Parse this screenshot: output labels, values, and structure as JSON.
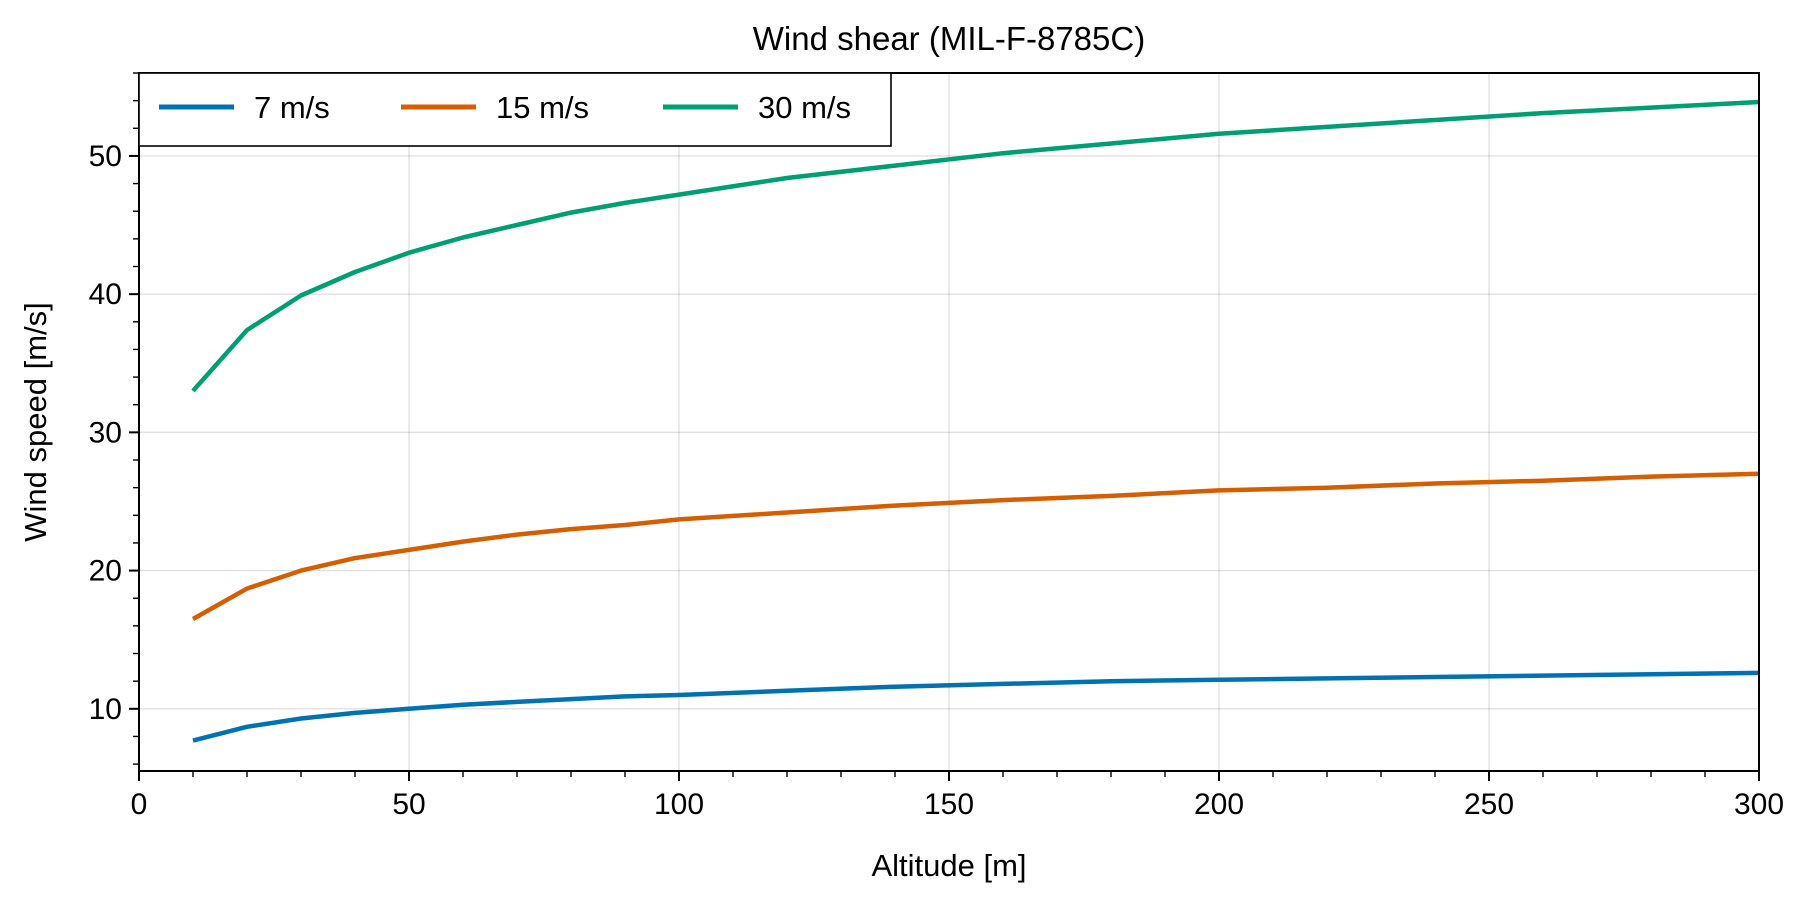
{
  "chart_data": {
    "type": "line",
    "title": "Wind shear (MIL-F-8785C)",
    "xlabel": "Altitude [m]",
    "ylabel": "Wind speed [m/s]",
    "xlim": [
      0,
      300
    ],
    "ylim": [
      5.5,
      56
    ],
    "xticks": [
      0,
      50,
      100,
      150,
      200,
      250,
      300
    ],
    "yticks": [
      10,
      20,
      30,
      40,
      50
    ],
    "grid": true,
    "legend_position": "top-left",
    "x": [
      10,
      20,
      30,
      40,
      50,
      60,
      70,
      80,
      90,
      100,
      120,
      140,
      160,
      180,
      200,
      220,
      240,
      260,
      280,
      300
    ],
    "series": [
      {
        "name": "7 m/s",
        "color": "#0072b2",
        "values": [
          7.7,
          8.7,
          9.3,
          9.7,
          10.0,
          10.3,
          10.5,
          10.7,
          10.9,
          11.0,
          11.3,
          11.6,
          11.8,
          12.0,
          12.1,
          12.2,
          12.3,
          12.4,
          12.5,
          12.6
        ]
      },
      {
        "name": "15 m/s",
        "color": "#d55e00",
        "values": [
          16.5,
          18.7,
          20.0,
          20.9,
          21.5,
          22.1,
          22.6,
          23.0,
          23.3,
          23.7,
          24.2,
          24.7,
          25.1,
          25.4,
          25.8,
          26.0,
          26.3,
          26.5,
          26.8,
          27.0
        ]
      },
      {
        "name": "30 m/s",
        "color": "#009e73",
        "values": [
          33.0,
          37.4,
          39.9,
          41.6,
          43.0,
          44.1,
          45.0,
          45.9,
          46.6,
          47.2,
          48.4,
          49.3,
          50.2,
          50.9,
          51.6,
          52.1,
          52.6,
          53.1,
          53.5,
          53.9
        ]
      }
    ]
  }
}
